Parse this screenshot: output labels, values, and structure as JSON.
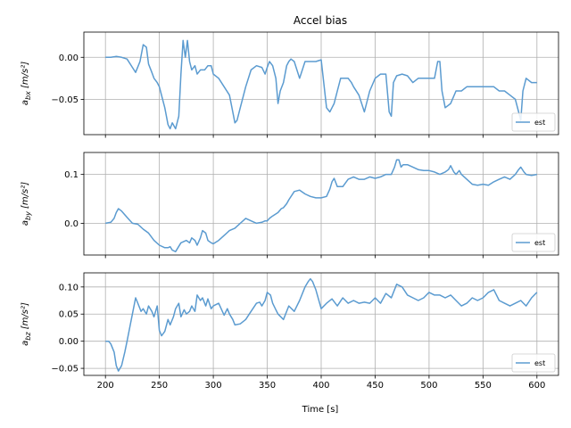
{
  "chart_data": {
    "type": "line",
    "title": "Accel bias",
    "xlabel": "Time [s]",
    "xlim": [
      180,
      620
    ],
    "xticks": [
      200,
      250,
      300,
      350,
      400,
      450,
      500,
      550,
      600
    ],
    "grid": true,
    "legend_placement": "lower-right",
    "series_color": "#5b9bd0",
    "panels": [
      {
        "ylabel_main": "a",
        "ylabel_sub": "bx",
        "ylabel_unit": "[m/s²]",
        "ylim": [
          -0.092,
          0.03
        ],
        "yticks": [
          0.0,
          -0.05
        ],
        "ytick_labels": [
          "0.00",
          "−0.05"
        ],
        "series": [
          {
            "name": "est",
            "x": [
              200,
              205,
              210,
              215,
              220,
              225,
              228,
              232,
              235,
              238,
              240,
              243,
              245,
              248,
              250,
              255,
              258,
              260,
              262,
              265,
              268,
              270,
              272,
              274,
              276,
              278,
              280,
              283,
              285,
              288,
              292,
              295,
              298,
              300,
              305,
              310,
              315,
              318,
              320,
              322,
              325,
              330,
              335,
              340,
              345,
              348,
              350,
              352,
              355,
              358,
              360,
              362,
              365,
              368,
              370,
              372,
              375,
              380,
              385,
              390,
              395,
              400,
              405,
              408,
              410,
              412,
              415,
              418,
              422,
              425,
              428,
              430,
              435,
              440,
              445,
              450,
              455,
              460,
              463,
              465,
              467,
              470,
              475,
              480,
              485,
              490,
              495,
              500,
              505,
              508,
              510,
              512,
              515,
              520,
              525,
              530,
              535,
              540,
              545,
              550,
              555,
              560,
              565,
              570,
              575,
              580,
              583,
              585,
              587,
              590,
              595,
              600
            ],
            "y": [
              0.0,
              0.0,
              0.001,
              0.0,
              -0.002,
              -0.012,
              -0.018,
              -0.005,
              0.015,
              0.012,
              -0.008,
              -0.018,
              -0.025,
              -0.03,
              -0.035,
              -0.06,
              -0.08,
              -0.085,
              -0.078,
              -0.085,
              -0.07,
              -0.02,
              0.02,
              0.0,
              0.02,
              -0.005,
              -0.015,
              -0.01,
              -0.02,
              -0.015,
              -0.015,
              -0.01,
              -0.01,
              -0.02,
              -0.025,
              -0.035,
              -0.045,
              -0.065,
              -0.078,
              -0.075,
              -0.06,
              -0.035,
              -0.015,
              -0.01,
              -0.012,
              -0.02,
              -0.012,
              -0.005,
              -0.01,
              -0.025,
              -0.055,
              -0.04,
              -0.03,
              -0.01,
              -0.005,
              -0.002,
              -0.005,
              -0.025,
              -0.005,
              -0.005,
              -0.005,
              -0.003,
              -0.06,
              -0.065,
              -0.06,
              -0.055,
              -0.04,
              -0.025,
              -0.025,
              -0.025,
              -0.03,
              -0.035,
              -0.045,
              -0.065,
              -0.04,
              -0.025,
              -0.02,
              -0.02,
              -0.065,
              -0.07,
              -0.03,
              -0.022,
              -0.02,
              -0.022,
              -0.03,
              -0.025,
              -0.025,
              -0.025,
              -0.025,
              -0.005,
              -0.005,
              -0.04,
              -0.06,
              -0.055,
              -0.04,
              -0.04,
              -0.035,
              -0.035,
              -0.035,
              -0.035,
              -0.035,
              -0.035,
              -0.04,
              -0.04,
              -0.045,
              -0.05,
              -0.065,
              -0.075,
              -0.04,
              -0.025,
              -0.03,
              -0.03
            ]
          }
        ]
      },
      {
        "ylabel_main": "a",
        "ylabel_sub": "by",
        "ylabel_unit": "[m/s²]",
        "ylim": [
          -0.065,
          0.145
        ],
        "yticks": [
          0.1,
          0.0
        ],
        "ytick_labels": [
          "0.1",
          "0.0"
        ],
        "series": [
          {
            "name": "est",
            "x": [
              200,
              205,
              208,
              210,
              212,
              215,
              220,
              225,
              230,
              235,
              240,
              245,
              250,
              255,
              258,
              260,
              262,
              265,
              270,
              275,
              278,
              280,
              283,
              285,
              288,
              290,
              293,
              295,
              298,
              300,
              305,
              310,
              315,
              320,
              325,
              330,
              335,
              340,
              345,
              348,
              350,
              352,
              355,
              360,
              363,
              365,
              368,
              370,
              375,
              380,
              385,
              390,
              395,
              400,
              405,
              408,
              410,
              412,
              415,
              420,
              425,
              430,
              435,
              440,
              445,
              450,
              455,
              460,
              465,
              468,
              470,
              472,
              474,
              476,
              480,
              485,
              490,
              495,
              500,
              505,
              510,
              515,
              518,
              520,
              523,
              525,
              528,
              530,
              535,
              540,
              545,
              550,
              555,
              560,
              565,
              570,
              575,
              580,
              583,
              585,
              588,
              590,
              595,
              600
            ],
            "y": [
              0.0,
              0.002,
              0.01,
              0.022,
              0.03,
              0.025,
              0.012,
              0.0,
              -0.002,
              -0.012,
              -0.02,
              -0.035,
              -0.045,
              -0.05,
              -0.05,
              -0.048,
              -0.055,
              -0.058,
              -0.04,
              -0.035,
              -0.04,
              -0.03,
              -0.035,
              -0.045,
              -0.03,
              -0.015,
              -0.02,
              -0.035,
              -0.04,
              -0.042,
              -0.035,
              -0.025,
              -0.015,
              -0.01,
              0.0,
              0.01,
              0.005,
              0.0,
              0.002,
              0.005,
              0.005,
              0.01,
              0.015,
              0.022,
              0.03,
              0.032,
              0.04,
              0.048,
              0.065,
              0.068,
              0.06,
              0.055,
              0.052,
              0.052,
              0.055,
              0.07,
              0.085,
              0.092,
              0.075,
              0.075,
              0.09,
              0.095,
              0.09,
              0.09,
              0.095,
              0.092,
              0.095,
              0.1,
              0.1,
              0.115,
              0.13,
              0.13,
              0.115,
              0.12,
              0.12,
              0.115,
              0.11,
              0.108,
              0.108,
              0.105,
              0.1,
              0.105,
              0.11,
              0.118,
              0.105,
              0.1,
              0.108,
              0.1,
              0.09,
              0.08,
              0.078,
              0.08,
              0.078,
              0.085,
              0.09,
              0.095,
              0.09,
              0.1,
              0.11,
              0.115,
              0.105,
              0.1,
              0.098,
              0.1
            ]
          }
        ]
      },
      {
        "ylabel_main": "a",
        "ylabel_sub": "bz",
        "ylabel_unit": "[m/s²]",
        "ylim": [
          -0.063,
          0.126
        ],
        "yticks": [
          0.1,
          0.05,
          0.0,
          -0.05
        ],
        "ytick_labels": [
          "0.10",
          "0.05",
          "0.00",
          "−0.05"
        ],
        "series": [
          {
            "name": "est",
            "x": [
              200,
              203,
              205,
              208,
              210,
              212,
              215,
              218,
              220,
              223,
              225,
              228,
              230,
              233,
              235,
              238,
              240,
              243,
              245,
              248,
              250,
              252,
              255,
              258,
              260,
              263,
              265,
              268,
              270,
              273,
              275,
              278,
              280,
              283,
              285,
              288,
              290,
              293,
              295,
              298,
              300,
              305,
              310,
              313,
              315,
              318,
              320,
              325,
              330,
              335,
              340,
              343,
              345,
              348,
              350,
              353,
              355,
              358,
              360,
              365,
              370,
              375,
              380,
              385,
              388,
              390,
              392,
              395,
              400,
              405,
              410,
              415,
              420,
              425,
              430,
              435,
              440,
              445,
              450,
              455,
              460,
              465,
              470,
              475,
              480,
              485,
              490,
              495,
              500,
              505,
              510,
              515,
              520,
              525,
              530,
              535,
              540,
              545,
              550,
              555,
              560,
              565,
              570,
              575,
              580,
              585,
              590,
              595,
              600
            ],
            "y": [
              0.0,
              0.0,
              -0.005,
              -0.02,
              -0.045,
              -0.055,
              -0.045,
              -0.02,
              0.0,
              0.03,
              0.05,
              0.08,
              0.07,
              0.055,
              0.06,
              0.05,
              0.065,
              0.055,
              0.045,
              0.065,
              0.02,
              0.01,
              0.018,
              0.04,
              0.03,
              0.045,
              0.06,
              0.07,
              0.045,
              0.058,
              0.05,
              0.055,
              0.065,
              0.055,
              0.085,
              0.075,
              0.08,
              0.065,
              0.078,
              0.06,
              0.065,
              0.07,
              0.048,
              0.06,
              0.05,
              0.04,
              0.03,
              0.032,
              0.04,
              0.055,
              0.07,
              0.072,
              0.065,
              0.075,
              0.09,
              0.085,
              0.07,
              0.058,
              0.05,
              0.04,
              0.065,
              0.055,
              0.075,
              0.1,
              0.11,
              0.115,
              0.11,
              0.095,
              0.06,
              0.07,
              0.078,
              0.065,
              0.08,
              0.07,
              0.075,
              0.07,
              0.072,
              0.07,
              0.08,
              0.07,
              0.088,
              0.08,
              0.105,
              0.1,
              0.085,
              0.08,
              0.075,
              0.08,
              0.09,
              0.085,
              0.085,
              0.08,
              0.085,
              0.075,
              0.065,
              0.07,
              0.08,
              0.075,
              0.08,
              0.09,
              0.095,
              0.075,
              0.07,
              0.065,
              0.07,
              0.075,
              0.065,
              0.08,
              0.09
            ]
          }
        ]
      }
    ]
  }
}
